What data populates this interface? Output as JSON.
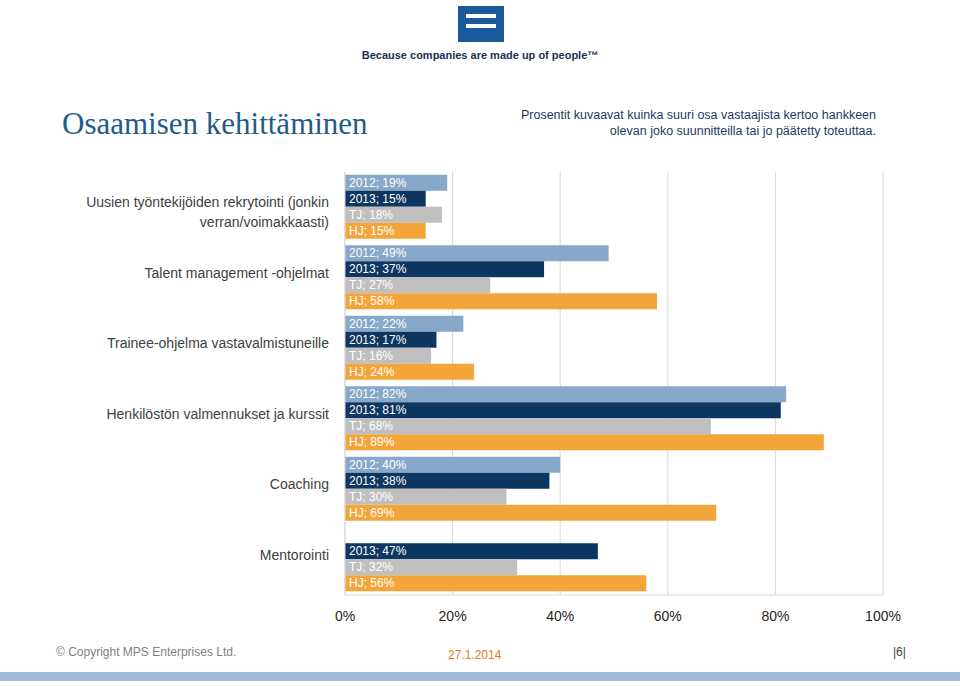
{
  "page": {
    "tagline": "Because companies are made up of people™",
    "copyright": "© Copyright MPS Enterprises Ltd.",
    "date": "27.1.2014",
    "page_number": "|6|"
  },
  "chart_data": {
    "type": "bar",
    "orientation": "horizontal",
    "title": "Osaamisen kehittäminen",
    "subtitle": "Prosentit kuvaavat kuinka suuri osa vastaajista kertoo hankkeen olevan joko suunnitteilla tai jo päätetty toteuttaa.",
    "categories": [
      "Uusien työntekijöiden rekrytointi (jonkin verran/voimakkaasti)",
      "Talent management -ohjelmat",
      "Trainee-ohjelma vastavalmistuneille",
      "Henkilöstön valmennukset ja kurssit",
      "Coaching",
      "Mentorointi"
    ],
    "series": [
      {
        "name": "2012",
        "color": "#87a8c8",
        "values": [
          19,
          49,
          22,
          82,
          40,
          null
        ],
        "value_labels": [
          "2012; 19%",
          "2012; 49%",
          "2012; 22%",
          "2012; 82%",
          "2012; 40%",
          null
        ]
      },
      {
        "name": "2013",
        "color": "#0d3761",
        "values": [
          15,
          37,
          17,
          81,
          38,
          47
        ],
        "value_labels": [
          "2013; 15%",
          "2013; 37%",
          "2013; 17%",
          "2013; 81%",
          "2013; 38%",
          "2013; 47%"
        ]
      },
      {
        "name": "TJ",
        "color": "#bfbfbf",
        "values": [
          18,
          27,
          16,
          68,
          30,
          32
        ],
        "value_labels": [
          "TJ; 18%",
          "TJ; 27%",
          "TJ; 16%",
          "TJ; 68%",
          "TJ; 30%",
          "TJ; 32%"
        ]
      },
      {
        "name": "HJ",
        "color": "#f4a53a",
        "values": [
          15,
          58,
          24,
          89,
          69,
          56
        ],
        "value_labels": [
          "HJ; 15%",
          "HJ; 58%",
          "HJ; 24%",
          "HJ; 89%",
          "HJ; 69%",
          "HJ; 56%"
        ]
      }
    ],
    "xlim": [
      0,
      100
    ],
    "xticks": [
      {
        "value": 0,
        "label": "0%"
      },
      {
        "value": 20,
        "label": "20%"
      },
      {
        "value": 40,
        "label": "40%"
      },
      {
        "value": 60,
        "label": "60%"
      },
      {
        "value": 80,
        "label": "80%"
      },
      {
        "value": 100,
        "label": "100%"
      }
    ],
    "grid": true,
    "data_labels": true
  }
}
